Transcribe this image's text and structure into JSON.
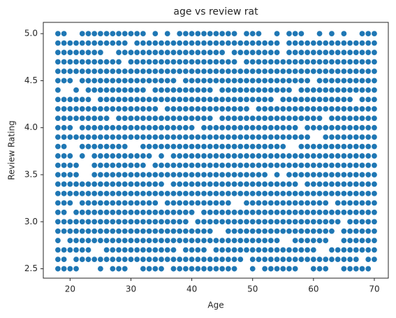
{
  "chart_data": {
    "type": "scatter",
    "title": "age vs review rat",
    "x_label": "Age",
    "y_label": "Review Rating",
    "color": "#1f77b4",
    "xlim": [
      15.6,
      72.3
    ],
    "ylim": [
      2.4,
      5.12
    ],
    "xticks": [
      20,
      30,
      40,
      50,
      60,
      70
    ],
    "yticks": [
      2.5,
      {
        "value": 3.0,
        "label": "3.0"
      },
      3.5,
      {
        "value": 4.0,
        "label": "4.0"
      },
      4.5,
      {
        "value": 5.0,
        "label": "5.0"
      }
    ],
    "rows": [
      {
        "y": 5.0,
        "x": [
          18,
          19,
          22,
          23,
          24,
          25,
          26,
          27,
          28,
          29,
          30,
          31,
          32,
          34,
          36,
          38,
          39,
          40,
          41,
          42,
          43,
          44,
          45,
          46,
          47,
          49,
          50,
          51,
          54,
          56,
          57,
          58,
          61,
          63,
          65,
          68,
          69,
          70
        ]
      },
      {
        "y": 4.9,
        "x": [
          18,
          19,
          20,
          21,
          22,
          23,
          24,
          25,
          26,
          27,
          28,
          29,
          31,
          32,
          33,
          34,
          35,
          36,
          37,
          38,
          39,
          40,
          41,
          42,
          43,
          44,
          45,
          46,
          47,
          48,
          49,
          50,
          51,
          52,
          53,
          54,
          56,
          57,
          58,
          59,
          60,
          61,
          62,
          63,
          64,
          65,
          66,
          67,
          68,
          69,
          70
        ]
      },
      {
        "y": 4.8,
        "x": [
          18,
          19,
          20,
          21,
          22,
          23,
          24,
          25,
          28,
          29,
          30,
          31,
          32,
          33,
          34,
          35,
          36,
          37,
          38,
          39,
          40,
          41,
          42,
          43,
          44,
          45,
          47,
          48,
          49,
          50,
          51,
          52,
          53,
          54,
          56,
          57,
          58,
          59,
          60,
          61,
          62,
          63,
          64,
          65,
          66,
          67,
          68,
          69,
          70
        ]
      },
      {
        "y": 4.7,
        "x": [
          18,
          19,
          20,
          21,
          22,
          23,
          24,
          25,
          26,
          27,
          28,
          30,
          31,
          32,
          33,
          34,
          35,
          36,
          37,
          38,
          39,
          40,
          41,
          42,
          43,
          44,
          45,
          46,
          47,
          49,
          50,
          51,
          52,
          53,
          54,
          55,
          56,
          57,
          58,
          59,
          60,
          61,
          62,
          63,
          64,
          65,
          66,
          67,
          68,
          69,
          70
        ]
      },
      {
        "y": 4.6,
        "x": [
          18,
          19,
          20,
          21,
          22,
          23,
          24,
          25,
          26,
          27,
          28,
          29,
          30,
          31,
          32,
          33,
          34,
          35,
          36,
          37,
          38,
          39,
          40,
          41,
          42,
          43,
          44,
          45,
          46,
          47,
          48,
          49,
          50,
          51,
          52,
          53,
          54,
          55,
          56,
          57,
          58,
          59,
          60,
          61,
          62,
          63,
          64,
          65,
          66,
          67,
          68,
          69,
          70
        ]
      },
      {
        "y": 4.5,
        "x": [
          18,
          19,
          20,
          22,
          23,
          24,
          25,
          26,
          27,
          28,
          29,
          30,
          31,
          32,
          33,
          34,
          35,
          36,
          37,
          39,
          40,
          41,
          42,
          43,
          44,
          45,
          46,
          47,
          48,
          49,
          50,
          51,
          52,
          53,
          54,
          55,
          56,
          57,
          58,
          59,
          61,
          62,
          63,
          64,
          65,
          66,
          67,
          68,
          69,
          70
        ]
      },
      {
        "y": 4.4,
        "x": [
          18,
          21,
          23,
          24,
          25,
          26,
          27,
          28,
          29,
          30,
          31,
          32,
          34,
          35,
          36,
          37,
          38,
          39,
          40,
          41,
          42,
          43,
          45,
          46,
          47,
          48,
          49,
          50,
          51,
          52,
          53,
          54,
          55,
          56,
          58,
          59,
          60,
          61,
          62,
          63,
          64,
          65,
          66,
          67,
          68,
          69,
          70
        ]
      },
      {
        "y": 4.3,
        "x": [
          18,
          19,
          20,
          21,
          22,
          23,
          25,
          26,
          27,
          28,
          29,
          30,
          31,
          32,
          33,
          34,
          35,
          36,
          37,
          38,
          39,
          40,
          41,
          42,
          43,
          44,
          45,
          46,
          47,
          48,
          49,
          50,
          51,
          52,
          53,
          55,
          56,
          57,
          58,
          59,
          60,
          61,
          62,
          63,
          64,
          65,
          66,
          68,
          69,
          70
        ]
      },
      {
        "y": 4.2,
        "x": [
          18,
          19,
          20,
          21,
          22,
          23,
          24,
          25,
          26,
          27,
          28,
          29,
          30,
          31,
          32,
          33,
          34,
          36,
          37,
          38,
          39,
          40,
          41,
          42,
          43,
          44,
          45,
          46,
          47,
          48,
          49,
          51,
          52,
          53,
          54,
          55,
          56,
          57,
          58,
          59,
          60,
          61,
          62,
          63,
          64,
          65,
          66,
          67,
          68,
          69,
          70
        ]
      },
      {
        "y": 4.1,
        "x": [
          18,
          19,
          20,
          21,
          22,
          23,
          24,
          25,
          26,
          28,
          29,
          30,
          31,
          32,
          33,
          34,
          35,
          36,
          37,
          38,
          39,
          40,
          41,
          42,
          43,
          45,
          46,
          47,
          48,
          49,
          50,
          51,
          52,
          53,
          54,
          55,
          56,
          57,
          58,
          59,
          60,
          61,
          63,
          64,
          65,
          66,
          67,
          68,
          69,
          70
        ]
      },
      {
        "y": 4.0,
        "x": [
          18,
          19,
          20,
          22,
          23,
          24,
          25,
          26,
          27,
          28,
          29,
          30,
          31,
          32,
          33,
          34,
          35,
          36,
          37,
          38,
          39,
          40,
          42,
          43,
          44,
          45,
          46,
          47,
          48,
          49,
          50,
          51,
          52,
          53,
          54,
          55,
          56,
          57,
          59,
          60,
          61,
          62,
          63,
          64,
          65,
          66,
          67,
          68,
          69,
          70
        ]
      },
      {
        "y": 3.9,
        "x": [
          18,
          19,
          20,
          21,
          22,
          23,
          24,
          25,
          26,
          27,
          28,
          29,
          30,
          31,
          32,
          33,
          34,
          35,
          36,
          37,
          38,
          39,
          40,
          41,
          42,
          43,
          44,
          45,
          46,
          47,
          48,
          49,
          50,
          51,
          52,
          53,
          54,
          55,
          56,
          57,
          58,
          59,
          62,
          63,
          64,
          65,
          66,
          67,
          68,
          69,
          70
        ]
      },
      {
        "y": 3.8,
        "x": [
          18,
          19,
          22,
          23,
          24,
          25,
          26,
          27,
          28,
          29,
          32,
          33,
          34,
          35,
          36,
          37,
          38,
          39,
          40,
          41,
          42,
          43,
          44,
          45,
          46,
          47,
          48,
          49,
          50,
          51,
          52,
          53,
          54,
          55,
          58,
          59,
          60,
          61,
          62,
          63,
          64,
          65,
          66,
          67,
          68,
          69,
          70
        ]
      },
      {
        "y": 3.7,
        "x": [
          18,
          19,
          20,
          22,
          24,
          25,
          26,
          27,
          28,
          29,
          30,
          31,
          32,
          33,
          35,
          37,
          38,
          39,
          40,
          41,
          42,
          43,
          44,
          45,
          46,
          47,
          48,
          49,
          50,
          51,
          52,
          53,
          54,
          55,
          56,
          57,
          58,
          59,
          60,
          61,
          62,
          63,
          64,
          65,
          66,
          67,
          68,
          69,
          70
        ]
      },
      {
        "y": 3.6,
        "x": [
          18,
          19,
          20,
          21,
          24,
          25,
          26,
          27,
          28,
          29,
          30,
          31,
          32,
          34,
          35,
          36,
          37,
          38,
          39,
          40,
          41,
          42,
          43,
          44,
          45,
          46,
          47,
          48,
          49,
          50,
          51,
          52,
          53,
          54,
          55,
          56,
          57,
          58,
          59,
          60,
          61,
          62,
          63,
          64,
          65,
          66,
          67,
          68,
          69,
          70
        ]
      },
      {
        "y": 3.5,
        "x": [
          18,
          19,
          20,
          21,
          24,
          25,
          26,
          27,
          28,
          29,
          30,
          31,
          32,
          33,
          34,
          35,
          36,
          37,
          38,
          39,
          40,
          41,
          42,
          43,
          44,
          45,
          46,
          47,
          48,
          49,
          50,
          51,
          52,
          54,
          56,
          57,
          58,
          59,
          60,
          61,
          62,
          63,
          64,
          65,
          66,
          67,
          68,
          69,
          70
        ]
      },
      {
        "y": 3.4,
        "x": [
          18,
          19,
          20,
          21,
          22,
          23,
          24,
          25,
          26,
          27,
          28,
          29,
          30,
          31,
          32,
          33,
          34,
          35,
          37,
          38,
          39,
          40,
          41,
          42,
          43,
          44,
          45,
          46,
          47,
          48,
          49,
          50,
          51,
          52,
          53,
          54,
          55,
          56,
          57,
          59,
          60,
          61,
          62,
          63,
          64,
          65,
          66,
          67,
          68,
          69,
          70
        ]
      },
      {
        "y": 3.3,
        "x": [
          18,
          19,
          20,
          21,
          22,
          23,
          24,
          25,
          26,
          27,
          28,
          29,
          30,
          31,
          32,
          33,
          34,
          35,
          36,
          37,
          38,
          39,
          40,
          41,
          42,
          43,
          44,
          45,
          46,
          47,
          48,
          49,
          50,
          51,
          52,
          53,
          54,
          55,
          56,
          57,
          58,
          59,
          60,
          61,
          62,
          63,
          64,
          65,
          66,
          67,
          68,
          69,
          70
        ]
      },
      {
        "y": 3.2,
        "x": [
          18,
          19,
          20,
          22,
          23,
          24,
          25,
          26,
          27,
          28,
          29,
          30,
          31,
          32,
          33,
          34,
          36,
          37,
          38,
          39,
          40,
          41,
          42,
          43,
          44,
          45,
          46,
          49,
          50,
          51,
          52,
          53,
          54,
          55,
          56,
          57,
          58,
          59,
          60,
          61,
          62,
          64,
          65,
          66,
          67,
          68,
          69,
          70
        ]
      },
      {
        "y": 3.1,
        "x": [
          18,
          19,
          21,
          22,
          23,
          24,
          25,
          26,
          27,
          28,
          29,
          30,
          31,
          32,
          33,
          34,
          35,
          36,
          37,
          38,
          39,
          40,
          42,
          43,
          44,
          45,
          46,
          47,
          48,
          49,
          50,
          51,
          52,
          53,
          54,
          55,
          56,
          57,
          58,
          59,
          60,
          61,
          62,
          63,
          64,
          65,
          66,
          67,
          68,
          69,
          70
        ]
      },
      {
        "y": 3.0,
        "x": [
          18,
          19,
          20,
          21,
          22,
          23,
          24,
          25,
          26,
          27,
          28,
          29,
          30,
          31,
          32,
          33,
          34,
          35,
          36,
          37,
          38,
          39,
          41,
          42,
          43,
          44,
          45,
          46,
          47,
          48,
          49,
          50,
          51,
          52,
          53,
          54,
          55,
          56,
          57,
          58,
          59,
          60,
          61,
          62,
          63,
          64,
          66,
          67,
          68,
          69,
          70
        ]
      },
      {
        "y": 2.9,
        "x": [
          18,
          19,
          20,
          21,
          22,
          23,
          24,
          25,
          26,
          27,
          28,
          29,
          30,
          31,
          32,
          33,
          34,
          35,
          36,
          37,
          38,
          39,
          40,
          41,
          42,
          43,
          46,
          47,
          48,
          49,
          50,
          51,
          52,
          53,
          54,
          55,
          56,
          57,
          58,
          59,
          60,
          61,
          62,
          63,
          65,
          66,
          67,
          68,
          69,
          70
        ]
      },
      {
        "y": 2.8,
        "x": [
          18,
          20,
          21,
          22,
          23,
          24,
          25,
          26,
          27,
          28,
          29,
          30,
          31,
          32,
          33,
          34,
          35,
          36,
          37,
          38,
          39,
          40,
          41,
          42,
          43,
          44,
          45,
          46,
          47,
          48,
          49,
          50,
          51,
          52,
          53,
          54,
          57,
          58,
          59,
          60,
          61,
          62,
          65,
          66,
          67,
          68,
          69,
          70
        ]
      },
      {
        "y": 2.7,
        "x": [
          18,
          19,
          20,
          21,
          22,
          23,
          26,
          27,
          28,
          29,
          30,
          31,
          32,
          33,
          34,
          35,
          36,
          37,
          39,
          40,
          41,
          42,
          44,
          45,
          46,
          47,
          48,
          49,
          50,
          51,
          52,
          53,
          54,
          55,
          56,
          57,
          58,
          59,
          60,
          63,
          64,
          65,
          66,
          67,
          68,
          69,
          70
        ]
      },
      {
        "y": 2.6,
        "x": [
          18,
          19,
          21,
          22,
          23,
          24,
          25,
          26,
          27,
          28,
          29,
          30,
          31,
          32,
          33,
          34,
          35,
          36,
          37,
          38,
          39,
          40,
          41,
          42,
          43,
          44,
          45,
          46,
          47,
          48,
          50,
          51,
          52,
          53,
          54,
          55,
          56,
          57,
          58,
          59,
          60,
          61,
          62,
          63,
          64,
          65,
          66,
          67,
          69,
          70
        ]
      },
      {
        "y": 2.5,
        "x": [
          18,
          19,
          20,
          21,
          25,
          27,
          28,
          29,
          32,
          33,
          34,
          35,
          37,
          38,
          39,
          40,
          41,
          42,
          43,
          44,
          45,
          46,
          47,
          50,
          52,
          53,
          54,
          55,
          56,
          57,
          60,
          61,
          62,
          65,
          66,
          67,
          68,
          69
        ]
      }
    ]
  }
}
